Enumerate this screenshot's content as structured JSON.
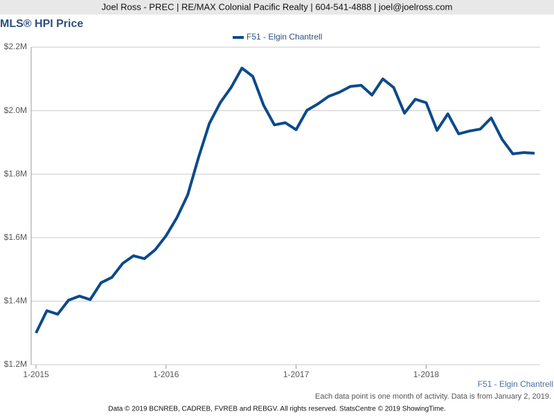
{
  "header": "Joel Ross - PREC | RE/MAX Colonial Pacific Realty | 604-541-4888 | joel@joelross.com",
  "footer": "Data © 2019 BCNREB, CADREB, FVREB and REBGV. All rights reserved. StatsCentre © 2019 ShowingTime.",
  "chart_data": {
    "type": "line",
    "title": "MLS® HPI Price",
    "x_label": "F51 - Elgin Chantrell",
    "note": "Each data point is one month of activity. Data is from January 2, 2019.",
    "categories": [
      "1-2015",
      null,
      null,
      null,
      null,
      null,
      null,
      null,
      null,
      null,
      null,
      null,
      "1-2016",
      null,
      null,
      null,
      null,
      null,
      null,
      null,
      null,
      null,
      null,
      null,
      "1-2017",
      null,
      null,
      null,
      null,
      null,
      null,
      null,
      null,
      null,
      null,
      null,
      "1-2018",
      null,
      null,
      null,
      null,
      null,
      null,
      null,
      null,
      null,
      null
    ],
    "series": [
      {
        "name": "F51 - Elgin Chantrell",
        "color": "#0b4a8b",
        "values": [
          1.3,
          1.37,
          1.359,
          1.403,
          1.416,
          1.405,
          1.458,
          1.475,
          1.519,
          1.543,
          1.534,
          1.562,
          1.606,
          1.663,
          1.735,
          1.853,
          1.96,
          2.025,
          2.073,
          2.134,
          2.108,
          2.017,
          1.955,
          1.962,
          1.94,
          2.001,
          2.021,
          2.045,
          2.058,
          2.076,
          2.08,
          2.049,
          2.1,
          2.073,
          1.992,
          2.036,
          2.025,
          1.938,
          1.99,
          1.927,
          1.936,
          1.942,
          1.977,
          1.91,
          1.864,
          1.868,
          1.866
        ]
      }
    ],
    "ylim": [
      1.2,
      2.2
    ],
    "yticks": [
      {
        "value": 1.2,
        "label": "$1.2M"
      },
      {
        "value": 1.4,
        "label": "$1.4M"
      },
      {
        "value": 1.6,
        "label": "$1.6M"
      },
      {
        "value": 1.8,
        "label": "$1.8M"
      },
      {
        "value": 2.0,
        "label": "$2.0M"
      },
      {
        "value": 2.2,
        "label": "$2.2M"
      }
    ],
    "grid": true,
    "legend": "top"
  }
}
